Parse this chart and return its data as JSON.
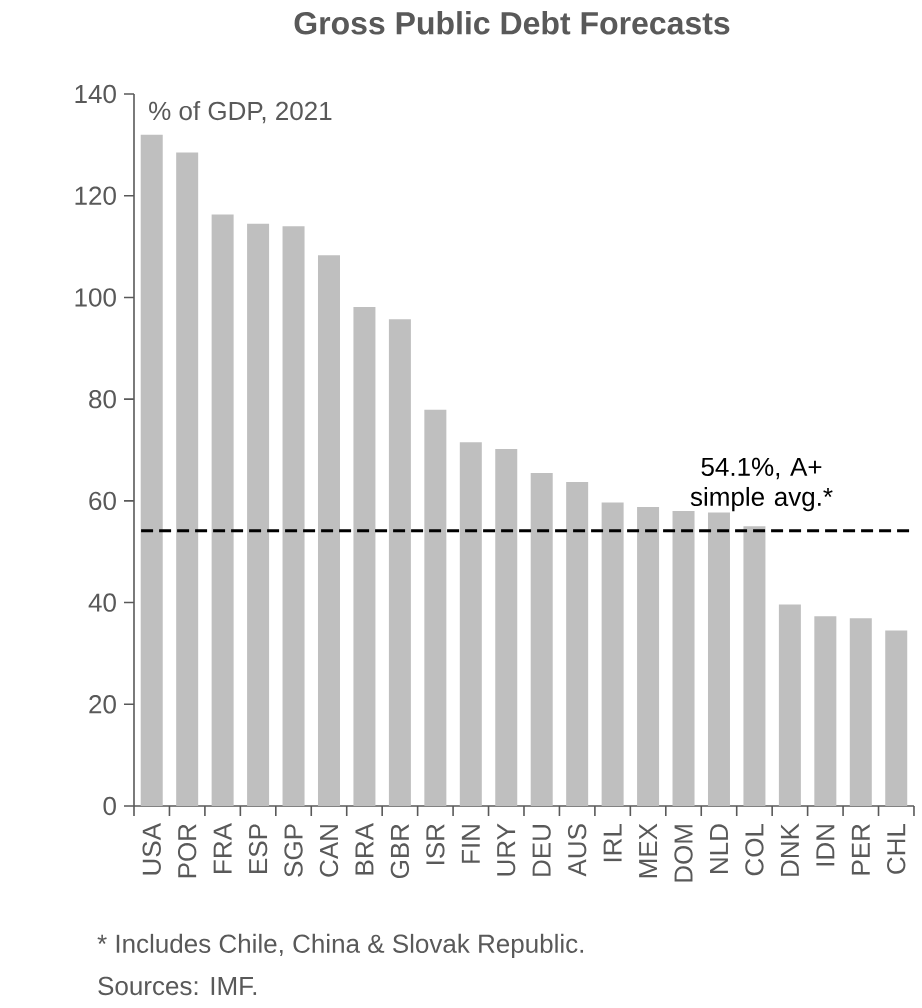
{
  "chart_data": {
    "type": "bar",
    "title": "Gross Public Debt Forecasts",
    "subtitle": "% of GDP, 2021",
    "categories": [
      "USA",
      "POR",
      "FRA",
      "ESP",
      "SGP",
      "CAN",
      "BRA",
      "GBR",
      "ISR",
      "FIN",
      "URY",
      "DEU",
      "AUS",
      "IRL",
      "MEX",
      "DOM",
      "NLD",
      "COL",
      "DNK",
      "IDN",
      "PER",
      "CHL"
    ],
    "values": [
      132,
      128.5,
      116.3,
      114.5,
      114,
      108.3,
      98.1,
      95.7,
      77.9,
      71.5,
      70.2,
      65.5,
      63.7,
      59.7,
      58.8,
      58,
      57.7,
      55,
      39.6,
      37.3,
      36.9,
      34.5
    ],
    "color": "#bfbfbf",
    "ylim": [
      0,
      140
    ],
    "yticks": [
      0,
      20,
      40,
      60,
      80,
      100,
      120,
      140
    ],
    "grid": false,
    "ref_lines": [
      {
        "axis": "y",
        "value": 54.1,
        "label": "54.1%, A+ simple avg.*",
        "color": "#000000",
        "line_style": "dashed"
      }
    ],
    "annotations": [
      "* Includes Chile, China & Slovak Republic.",
      "Sources: IMF."
    ]
  }
}
